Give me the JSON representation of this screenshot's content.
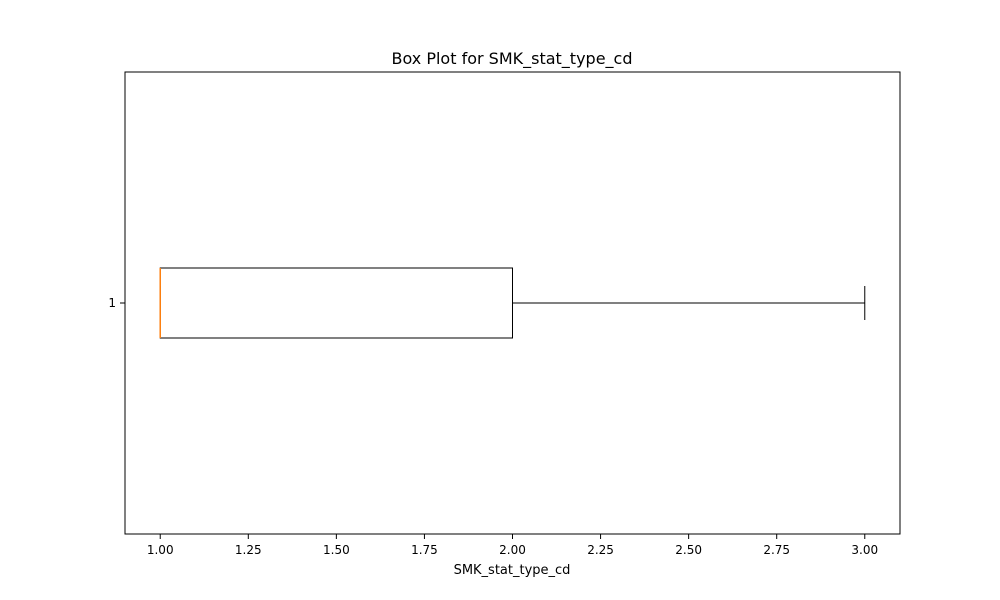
{
  "chart_data": {
    "type": "box",
    "orientation": "horizontal",
    "title": "Box Plot for SMK_stat_type_cd",
    "xlabel": "SMK_stat_type_cd",
    "ylabel": "",
    "xlim": [
      0.9,
      3.1
    ],
    "x_ticks": [
      "1.00",
      "1.25",
      "1.50",
      "1.75",
      "2.00",
      "2.25",
      "2.50",
      "2.75",
      "3.00"
    ],
    "y_ticks": [
      "1"
    ],
    "grid": false,
    "boxes": [
      {
        "category": "1",
        "whisker_low": 1.0,
        "q1": 1.0,
        "median": 1.0,
        "q3": 2.0,
        "whisker_high": 3.0
      }
    ],
    "colors": {
      "box": "#000000",
      "median": "#ff7f0e"
    }
  }
}
